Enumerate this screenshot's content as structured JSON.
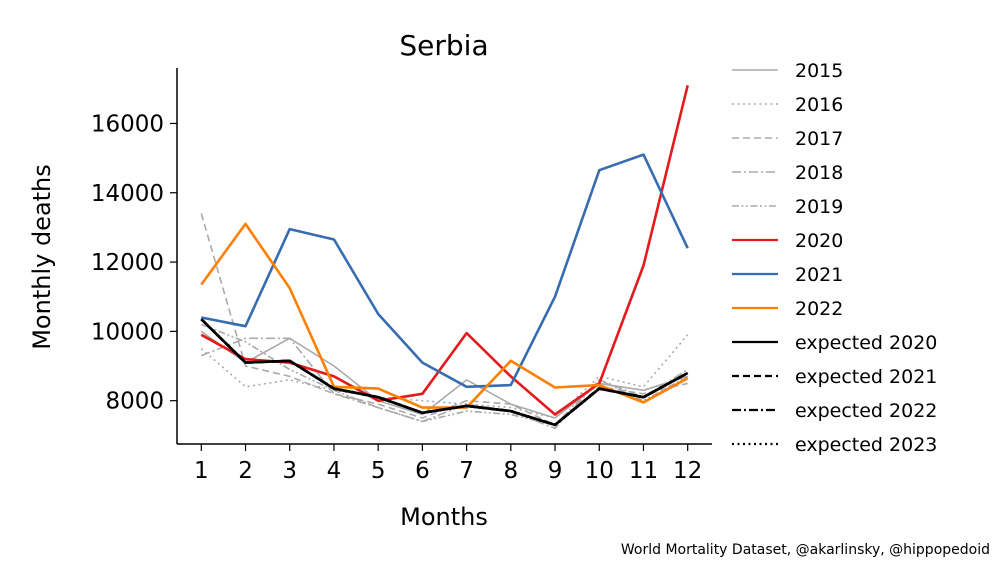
{
  "chart_data": {
    "type": "line",
    "title": "Serbia",
    "xlabel": "Months",
    "ylabel": "Monthly deaths",
    "x": [
      1,
      2,
      3,
      4,
      5,
      6,
      7,
      8,
      9,
      10,
      11,
      12
    ],
    "x_tick_labels": [
      "1",
      "2",
      "3",
      "4",
      "5",
      "6",
      "7",
      "8",
      "9",
      "10",
      "11",
      "12"
    ],
    "y_ticks": [
      8000,
      10000,
      12000,
      14000,
      16000
    ],
    "y_tick_labels": [
      "8000",
      "10000",
      "12000",
      "14000",
      "16000"
    ],
    "ylim": [
      6750,
      17600
    ],
    "xlim": [
      0.45,
      12.55
    ],
    "grid": false,
    "legend_position": "right",
    "series": [
      {
        "name": "2015",
        "color": "#aaaaaa",
        "style": "solid",
        "values": [
          10000,
          9100,
          9800,
          9000,
          8000,
          7600,
          8600,
          7900,
          7500,
          8500,
          8300,
          8700
        ]
      },
      {
        "name": "2016",
        "color": "#aaaaaa",
        "style": "dotted",
        "values": [
          9500,
          8400,
          8600,
          8300,
          8100,
          8000,
          7900,
          7800,
          7500,
          8700,
          8400,
          9900
        ]
      },
      {
        "name": "2017",
        "color": "#aaaaaa",
        "style": "dashed",
        "values": [
          13400,
          9000,
          8700,
          8200,
          7900,
          7500,
          8000,
          7900,
          7300,
          8400,
          8200,
          8500
        ]
      },
      {
        "name": "2018",
        "color": "#aaaaaa",
        "style": "dashdot",
        "values": [
          9300,
          9800,
          9800,
          8200,
          7800,
          7400,
          7900,
          7700,
          7200,
          8600,
          8100,
          8900
        ]
      },
      {
        "name": "2019",
        "color": "#aaaaaa",
        "style": "dashdotdot",
        "values": [
          10200,
          9700,
          8900,
          8300,
          7800,
          7400,
          7700,
          7600,
          7300,
          8600,
          8000,
          8700
        ]
      },
      {
        "name": "2020",
        "color": "#e41a1c",
        "style": "solid",
        "values": [
          9900,
          9200,
          9100,
          8700,
          8000,
          8200,
          9950,
          8700,
          7600,
          8500,
          11900,
          17100
        ]
      },
      {
        "name": "2021",
        "color": "#386cb0",
        "style": "solid",
        "values": [
          10400,
          10150,
          12950,
          12650,
          10500,
          9100,
          8400,
          8450,
          11000,
          14650,
          15100,
          12400
        ]
      },
      {
        "name": "2022",
        "color": "#ff7f00",
        "style": "solid",
        "values": [
          11350,
          13100,
          11250,
          8400,
          8350,
          7800,
          7800,
          9150,
          8380,
          8450,
          7950,
          8650
        ]
      },
      {
        "name": "expected 2020",
        "color": "#000000",
        "style": "solid",
        "values": [
          10350,
          9100,
          9150,
          8350,
          8100,
          7650,
          7850,
          7700,
          7300,
          8350,
          8100,
          8800
        ]
      },
      {
        "name": "expected 2021",
        "color": "#000000",
        "style": "dashed",
        "values": [
          10350,
          9100,
          9150,
          8350,
          8100,
          7650,
          7850,
          7700,
          7300,
          8350,
          8100,
          8800
        ]
      },
      {
        "name": "expected 2022",
        "color": "#000000",
        "style": "dashdot",
        "values": [
          10350,
          9100,
          9150,
          8350,
          8100,
          7650,
          7850,
          7700,
          7300,
          8350,
          8100,
          8800
        ]
      },
      {
        "name": "expected 2023",
        "color": "#000000",
        "style": "dotted",
        "values": [
          10350,
          9100,
          9150,
          8350,
          8100,
          7650,
          7850,
          7700,
          7300,
          8350,
          8100,
          8800
        ]
      }
    ]
  },
  "footer": {
    "credit": "World Mortality Dataset, @akarlinsky, @hippopedoid"
  }
}
